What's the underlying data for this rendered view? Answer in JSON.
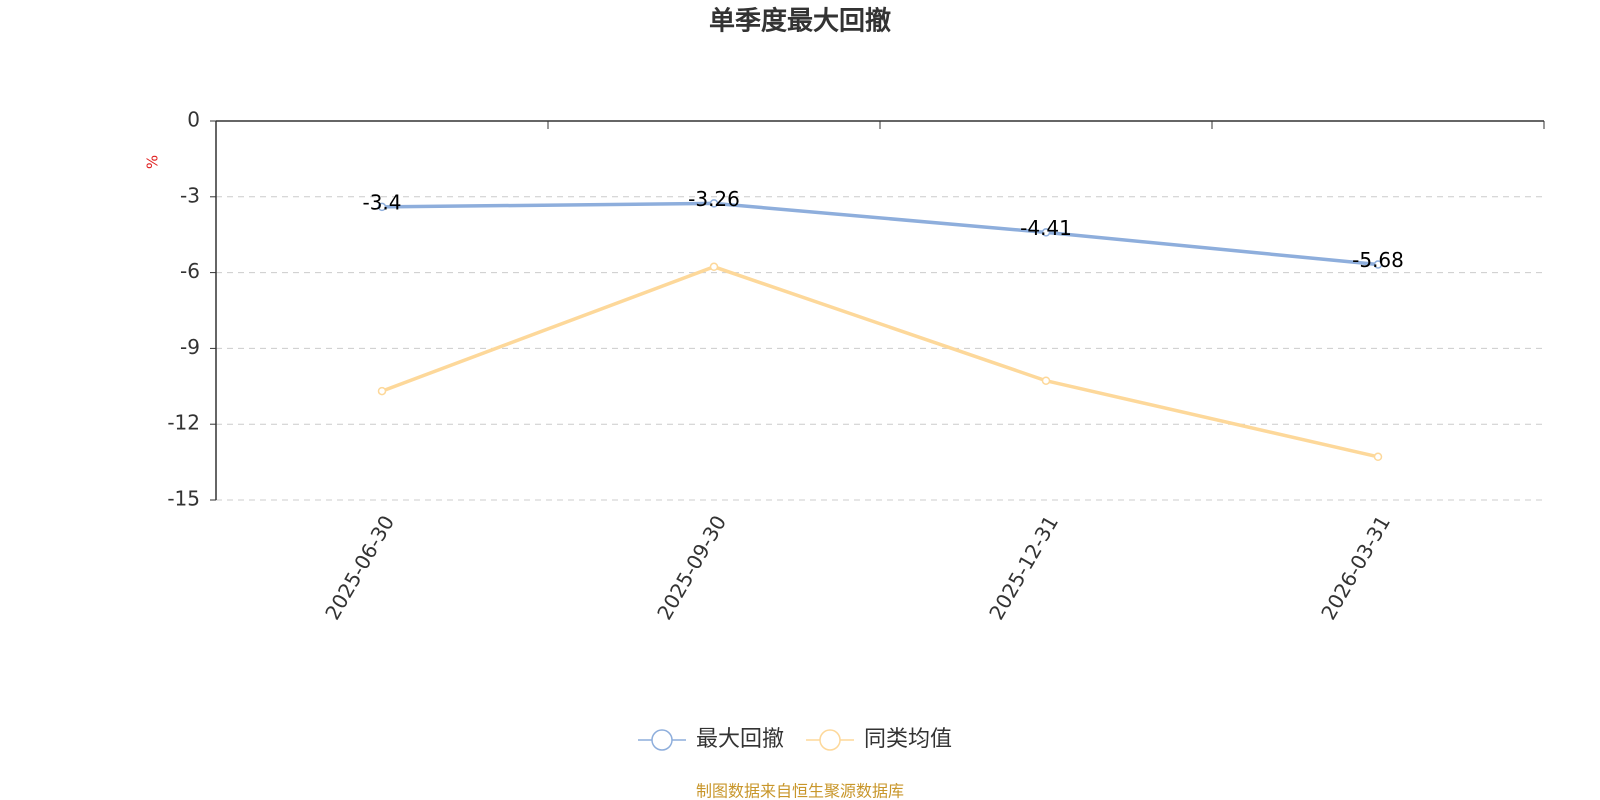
{
  "chart_data": {
    "type": "line",
    "title": "单季度最大回撤",
    "y_label": "%",
    "categories": [
      "2025-06-30",
      "2025-09-30",
      "2025-12-31",
      "2026-03-31"
    ],
    "series": [
      {
        "name": "最大回撤",
        "color": "#8eaedc",
        "values": [
          -3.4,
          -3.26,
          -4.41,
          -5.68
        ],
        "show_labels": true
      },
      {
        "name": "同类均值",
        "color": "#fdd89a",
        "values": [
          -10.69,
          -5.77,
          -10.28,
          -13.29
        ],
        "show_labels": false
      }
    ],
    "ylim": [
      -15,
      0
    ],
    "yticks": [
      0,
      -3,
      -6,
      -9,
      -12,
      -15
    ],
    "grid": true,
    "legend": "bottom",
    "source": "制图数据来自恒生聚源数据库"
  }
}
